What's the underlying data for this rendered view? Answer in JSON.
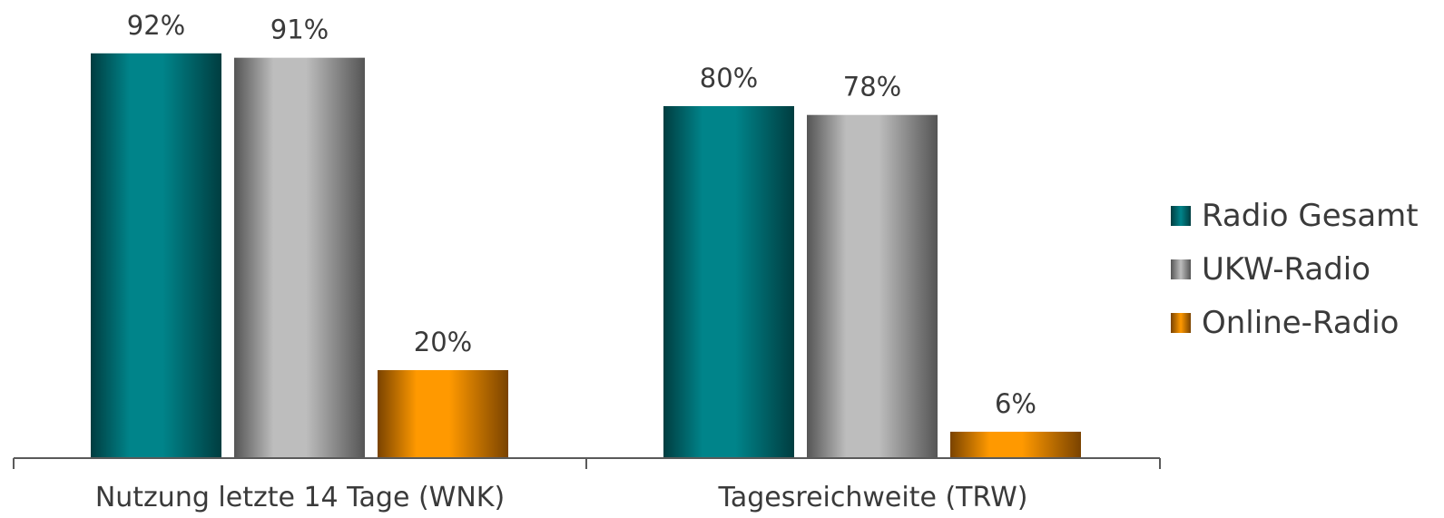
{
  "chart_data": {
    "type": "bar",
    "categories": [
      "Nutzung letzte 14 Tage (WNK)",
      "Tagesreichweite (TRW)"
    ],
    "series": [
      {
        "name": "Radio Gesamt",
        "values": [
          92,
          80
        ],
        "labels": [
          "92%",
          "80%"
        ],
        "color": "#00848a",
        "dark": "#003d40"
      },
      {
        "name": "UKW-Radio",
        "values": [
          91,
          78
        ],
        "labels": [
          "91%",
          "78%"
        ],
        "color": "#bdbdbd",
        "dark": "#555555"
      },
      {
        "name": "Online-Radio",
        "values": [
          20,
          6
        ],
        "labels": [
          "20%",
          "6%"
        ],
        "color": "#ff9900",
        "dark": "#7a4300"
      }
    ],
    "ylim": [
      0,
      100
    ],
    "grid": false,
    "legend": "right"
  }
}
